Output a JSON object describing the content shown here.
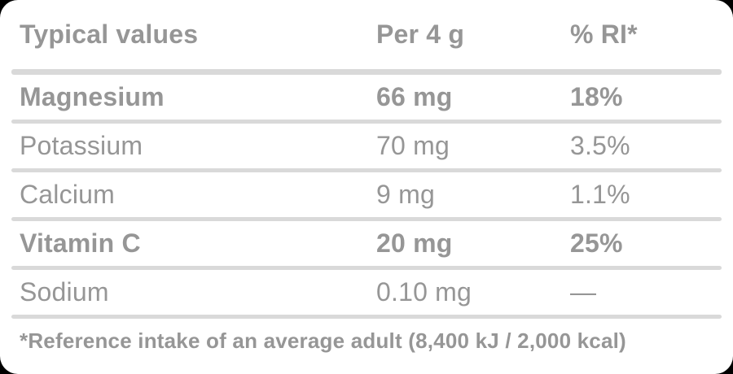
{
  "table": {
    "columns": [
      "Typical values",
      "Per 4 g",
      "% RI*"
    ],
    "rows": [
      {
        "label": "Magnesium",
        "amount": "66 mg",
        "ri": "18%"
      },
      {
        "label": "Potassium",
        "amount": "70 mg",
        "ri": "3.5%"
      },
      {
        "label": "Calcium",
        "amount": "9 mg",
        "ri": "1.1%"
      },
      {
        "label": "Vitamin C",
        "amount": "20 mg",
        "ri": "25%"
      },
      {
        "label": "Sodium",
        "amount": "0.10 mg",
        "ri": "—"
      }
    ]
  },
  "footnote": "*Reference intake of an average adult (8,400 kJ / 2,000 kcal)",
  "colors": {
    "text": "#969696",
    "divider": "#d9d9d9",
    "card_background": "#ffffff",
    "page_background": "#000000"
  }
}
